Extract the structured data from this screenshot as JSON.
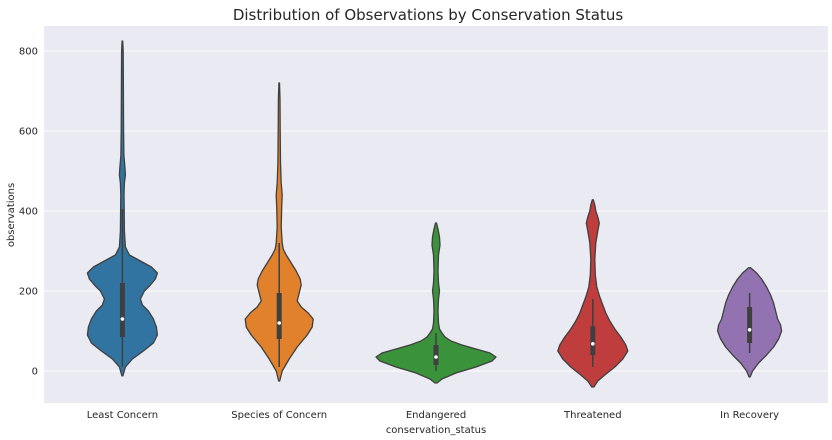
{
  "chart_data": {
    "type": "violin",
    "title": "Distribution of Observations by Conservation Status",
    "xlabel": "conservation_status",
    "ylabel": "observations",
    "ylim": [
      -80,
      860
    ],
    "yticks": [
      0,
      200,
      400,
      600,
      800
    ],
    "grid": true,
    "categories": [
      "Least Concern",
      "Species of Concern",
      "Endangered",
      "Threatened",
      "In Recovery"
    ],
    "colors": [
      "#3274a1",
      "#e1812c",
      "#3a923a",
      "#c03d3e",
      "#9372b2"
    ],
    "plot_background": "#eaeaf2",
    "violins": [
      {
        "name": "Least Concern",
        "min": -12,
        "max": 825,
        "q1": 85,
        "median": 130,
        "q3": 220,
        "whisker_low": 10,
        "whisker_high": 405,
        "profile": [
          [
            -12,
            0.5
          ],
          [
            10,
            3
          ],
          [
            30,
            10
          ],
          [
            50,
            21
          ],
          [
            70,
            31
          ],
          [
            90,
            35
          ],
          [
            110,
            34
          ],
          [
            130,
            31
          ],
          [
            150,
            26
          ],
          [
            165,
            20
          ],
          [
            180,
            18
          ],
          [
            200,
            22
          ],
          [
            215,
            28
          ],
          [
            230,
            33
          ],
          [
            245,
            35
          ],
          [
            260,
            29
          ],
          [
            275,
            18
          ],
          [
            290,
            7
          ],
          [
            310,
            3
          ],
          [
            350,
            2
          ],
          [
            400,
            1.8
          ],
          [
            440,
            1.6
          ],
          [
            470,
            2
          ],
          [
            490,
            3
          ],
          [
            510,
            2.5
          ],
          [
            540,
            1.5
          ],
          [
            600,
            1.2
          ],
          [
            700,
            1
          ],
          [
            800,
            0.8
          ],
          [
            825,
            0.3
          ]
        ]
      },
      {
        "name": "Species of Concern",
        "min": -25,
        "max": 720,
        "q1": 80,
        "median": 120,
        "q3": 195,
        "whisker_low": 10,
        "whisker_high": 320,
        "profile": [
          [
            -25,
            0.5
          ],
          [
            0,
            3
          ],
          [
            30,
            10
          ],
          [
            60,
            18
          ],
          [
            90,
            28
          ],
          [
            110,
            33
          ],
          [
            130,
            34
          ],
          [
            145,
            29
          ],
          [
            160,
            22
          ],
          [
            175,
            18
          ],
          [
            195,
            20
          ],
          [
            215,
            22
          ],
          [
            230,
            21
          ],
          [
            250,
            17
          ],
          [
            270,
            12
          ],
          [
            290,
            7
          ],
          [
            305,
            4
          ],
          [
            320,
            3
          ],
          [
            360,
            2
          ],
          [
            410,
            2.5
          ],
          [
            440,
            3
          ],
          [
            470,
            2
          ],
          [
            520,
            1.3
          ],
          [
            600,
            1
          ],
          [
            680,
            0.8
          ],
          [
            720,
            0.3
          ]
        ]
      },
      {
        "name": "Endangered",
        "min": -30,
        "max": 370,
        "q1": 15,
        "median": 35,
        "q3": 65,
        "whisker_low": 0,
        "whisker_high": 95,
        "profile": [
          [
            -30,
            1
          ],
          [
            -20,
            6
          ],
          [
            -5,
            20
          ],
          [
            10,
            40
          ],
          [
            25,
            56
          ],
          [
            35,
            60
          ],
          [
            45,
            54
          ],
          [
            55,
            40
          ],
          [
            65,
            26
          ],
          [
            75,
            15
          ],
          [
            85,
            9
          ],
          [
            95,
            6
          ],
          [
            105,
            3.5
          ],
          [
            120,
            2.5
          ],
          [
            150,
            2
          ],
          [
            180,
            2.5
          ],
          [
            200,
            3.5
          ],
          [
            220,
            2.5
          ],
          [
            250,
            2
          ],
          [
            290,
            2.5
          ],
          [
            315,
            4
          ],
          [
            335,
            3.5
          ],
          [
            355,
            2
          ],
          [
            370,
            0.5
          ]
        ]
      },
      {
        "name": "Threatened",
        "min": -40,
        "max": 428,
        "q1": 40,
        "median": 68,
        "q3": 112,
        "whisker_low": 10,
        "whisker_high": 180,
        "profile": [
          [
            -40,
            1
          ],
          [
            -25,
            5
          ],
          [
            -10,
            12
          ],
          [
            10,
            22
          ],
          [
            30,
            30
          ],
          [
            50,
            35
          ],
          [
            65,
            33
          ],
          [
            85,
            28
          ],
          [
            105,
            22
          ],
          [
            125,
            17
          ],
          [
            145,
            13
          ],
          [
            165,
            10
          ],
          [
            185,
            7
          ],
          [
            210,
            4
          ],
          [
            240,
            2.5
          ],
          [
            280,
            2
          ],
          [
            320,
            3
          ],
          [
            350,
            5
          ],
          [
            370,
            6.5
          ],
          [
            385,
            5
          ],
          [
            400,
            3
          ],
          [
            415,
            2
          ],
          [
            428,
            0.5
          ]
        ]
      },
      {
        "name": "In Recovery",
        "min": -15,
        "max": 258,
        "q1": 70,
        "median": 103,
        "q3": 160,
        "whisker_low": 45,
        "whisker_high": 195,
        "profile": [
          [
            -15,
            0.5
          ],
          [
            0,
            3
          ],
          [
            20,
            9
          ],
          [
            40,
            17
          ],
          [
            60,
            24
          ],
          [
            80,
            29
          ],
          [
            100,
            32
          ],
          [
            115,
            31
          ],
          [
            130,
            28
          ],
          [
            150,
            26
          ],
          [
            170,
            24
          ],
          [
            190,
            21
          ],
          [
            210,
            17
          ],
          [
            230,
            12
          ],
          [
            245,
            7
          ],
          [
            258,
            1
          ]
        ]
      }
    ]
  }
}
